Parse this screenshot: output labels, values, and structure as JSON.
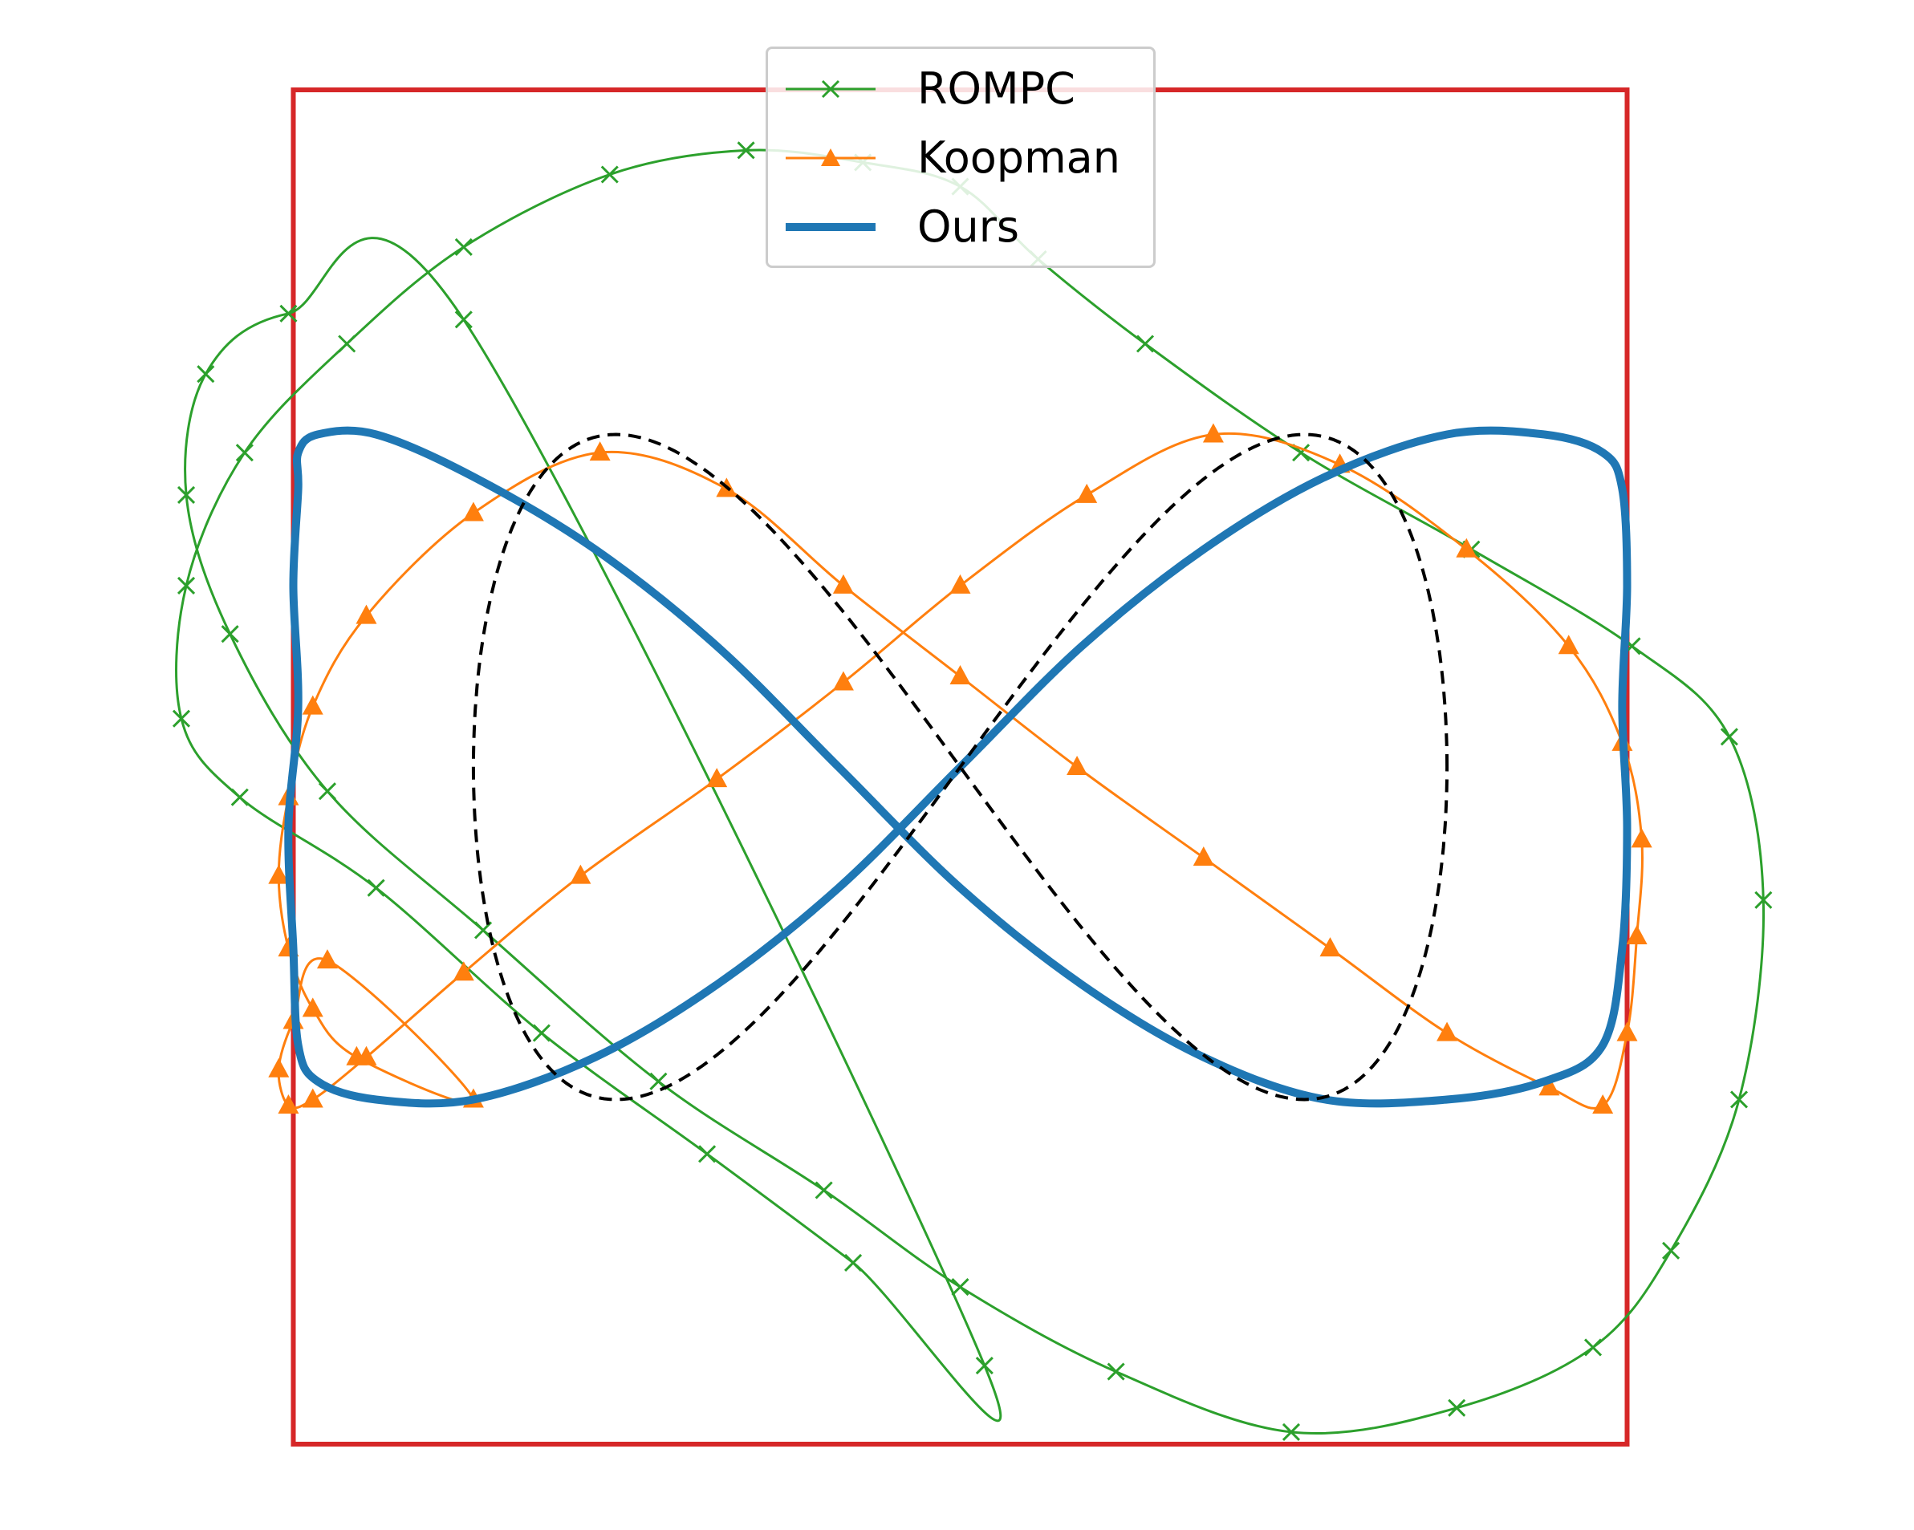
{
  "chart_data": {
    "type": "line",
    "title": "",
    "xlabel": "",
    "ylabel": "",
    "axes_visible": false,
    "grid": false,
    "legend": {
      "placement": "top-center",
      "entries": [
        "ROMPC",
        "Koopman",
        "Ours"
      ]
    },
    "xlim": [
      -1.75,
      1.75
    ],
    "ylim": [
      -1.12,
      1.12
    ],
    "reference": {
      "name": "",
      "style": "dashed",
      "color": "#000000",
      "kind": "figure-eight",
      "amplitude_x": 1.0,
      "amplitude_y": 0.55
    },
    "boundary": {
      "name": "",
      "color": "#d62728",
      "x": [
        -1.37,
        1.37
      ],
      "y": [
        -1.12,
        1.12
      ]
    },
    "series": [
      {
        "name": "ROMPC",
        "color": "#2ca02c",
        "marker": "x",
        "x": [
          -1.02,
          -1.38,
          -1.55,
          -1.59,
          -1.5,
          -1.3,
          -0.98,
          -0.62,
          -0.28,
          0.0,
          0.32,
          0.68,
          1.02,
          1.3,
          1.46,
          1.6,
          1.65,
          1.58,
          1.38,
          1.05,
          0.7,
          0.38,
          0.16,
          0.0,
          -0.2,
          -0.44,
          -0.72,
          -1.02,
          -1.26,
          -1.47,
          -1.59,
          -1.6,
          -1.48,
          -1.2,
          -0.86,
          -0.52,
          -0.22,
          0.05
        ],
        "y": [
          0.74,
          0.75,
          0.65,
          0.45,
          0.22,
          -0.04,
          -0.27,
          -0.52,
          -0.7,
          -0.86,
          -1.0,
          -1.1,
          -1.06,
          -0.96,
          -0.8,
          -0.55,
          -0.22,
          0.05,
          0.2,
          0.36,
          0.52,
          0.7,
          0.84,
          0.96,
          1.0,
          1.02,
          0.98,
          0.86,
          0.7,
          0.52,
          0.3,
          0.08,
          -0.05,
          -0.2,
          -0.44,
          -0.64,
          -0.82,
          -0.99
        ]
      },
      {
        "name": "Koopman",
        "color": "#ff7f0e",
        "marker": "^",
        "x": [
          -1.0,
          -1.24,
          -1.33,
          -1.38,
          -1.4,
          -1.38,
          -1.33,
          -1.22,
          -1.0,
          -0.74,
          -0.48,
          -0.24,
          0.0,
          0.24,
          0.5,
          0.76,
          1.0,
          1.21,
          1.32,
          1.37,
          1.39,
          1.4,
          1.36,
          1.25,
          1.04,
          0.78,
          0.52,
          0.26,
          0.0,
          -0.24,
          -0.5,
          -0.78,
          -1.02,
          -1.22,
          -1.33,
          -1.38,
          -1.4,
          -1.37,
          -1.3
        ],
        "y": [
          -0.55,
          -0.48,
          -0.4,
          -0.3,
          -0.18,
          -0.05,
          0.1,
          0.25,
          0.42,
          0.52,
          0.46,
          0.3,
          0.15,
          0.0,
          -0.15,
          -0.3,
          -0.44,
          -0.53,
          -0.56,
          -0.44,
          -0.28,
          -0.12,
          0.04,
          0.2,
          0.36,
          0.5,
          0.55,
          0.45,
          0.3,
          0.14,
          -0.02,
          -0.18,
          -0.34,
          -0.48,
          -0.55,
          -0.56,
          -0.5,
          -0.42,
          -0.32
        ]
      },
      {
        "name": "Ours",
        "color": "#1f77b4",
        "marker": "",
        "x": [
          -1.36,
          -1.37,
          -1.36,
          -1.38,
          -1.37,
          -1.36,
          -1.32,
          -1.2,
          -1.0,
          -0.75,
          -0.5,
          -0.25,
          0.0,
          0.25,
          0.5,
          0.75,
          1.0,
          1.2,
          1.32,
          1.36,
          1.37,
          1.36,
          1.37,
          1.36,
          1.32,
          1.2,
          1.0,
          0.75,
          0.5,
          0.25,
          0.0,
          -0.25,
          -0.5,
          -0.75,
          -1.0,
          -1.2,
          -1.32,
          -1.36
        ],
        "y": [
          0.46,
          0.3,
          0.1,
          -0.1,
          -0.3,
          -0.46,
          -0.52,
          -0.55,
          -0.55,
          -0.48,
          -0.36,
          -0.2,
          0.0,
          0.2,
          0.36,
          0.48,
          0.55,
          0.55,
          0.52,
          0.46,
          0.3,
          0.1,
          -0.1,
          -0.3,
          -0.46,
          -0.52,
          -0.55,
          -0.55,
          -0.48,
          -0.36,
          -0.2,
          0.0,
          0.2,
          0.36,
          0.48,
          0.55,
          0.55,
          0.52
        ]
      }
    ]
  }
}
